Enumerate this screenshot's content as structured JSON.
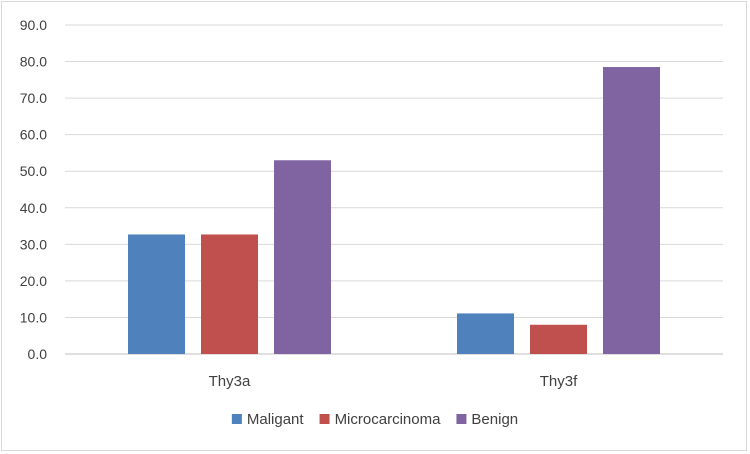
{
  "chart_data": {
    "type": "bar",
    "categories": [
      "Thy3a",
      "Thy3f"
    ],
    "series": [
      {
        "name": "Maligant",
        "values": [
          32.7,
          11.1
        ],
        "color": "#4f81bd"
      },
      {
        "name": "Microcarcinoma",
        "values": [
          32.7,
          8.0
        ],
        "color": "#c0504d"
      },
      {
        "name": "Benign",
        "values": [
          53.0,
          78.5
        ],
        "color": "#8064a2"
      }
    ],
    "ylim": [
      0,
      90
    ],
    "yticks": [
      "0.0",
      "10.0",
      "20.0",
      "30.0",
      "40.0",
      "50.0",
      "60.0",
      "70.0",
      "80.0",
      "90.0"
    ],
    "grid": true,
    "legend_position": "bottom"
  }
}
